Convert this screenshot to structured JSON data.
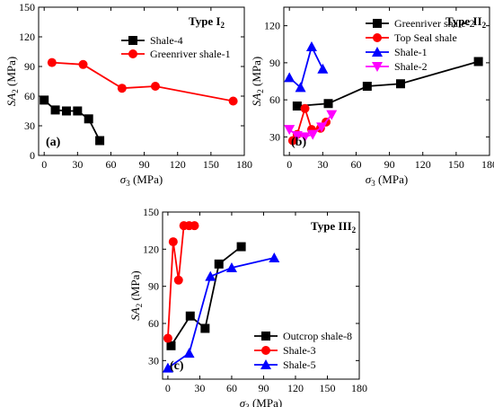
{
  "chart_data": [
    {
      "type": "line",
      "panel_label": "(a)",
      "type_label": {
        "base": "Type I",
        "sub": "2"
      },
      "xlabel": {
        "sym": "σ",
        "sub": "3",
        "unit": " (MPa)"
      },
      "ylabel": {
        "sym": "SA",
        "sub": "2",
        "unit": " (MPa)"
      },
      "xlim": [
        -5,
        180
      ],
      "ylim": [
        0,
        150
      ],
      "xticks": [
        0,
        30,
        60,
        90,
        120,
        150,
        180
      ],
      "yticks": [
        0,
        30,
        60,
        90,
        120,
        150
      ],
      "legend_position": "top-right",
      "series": [
        {
          "name": "Shale-4",
          "color": "#000000",
          "marker": "square",
          "x": [
            0,
            10,
            20,
            30,
            40,
            50
          ],
          "y": [
            56,
            46,
            45,
            45,
            37,
            15
          ]
        },
        {
          "name": "Greenriver shale-1",
          "color": "#ff0000",
          "marker": "circle",
          "x": [
            7,
            35,
            70,
            100,
            170
          ],
          "y": [
            94,
            92,
            68,
            70,
            55
          ]
        }
      ]
    },
    {
      "type": "line",
      "panel_label": "(b)",
      "type_label": {
        "base": "Type II",
        "sub": "2"
      },
      "xlabel": {
        "sym": "σ",
        "sub": "3",
        "unit": " (MPa)"
      },
      "ylabel": {
        "sym": "SA",
        "sub": "2",
        "unit": " (MPa)"
      },
      "xlim": [
        -5,
        180
      ],
      "ylim": [
        15,
        135
      ],
      "xticks": [
        0,
        30,
        60,
        90,
        120,
        150,
        180
      ],
      "yticks": [
        30,
        60,
        90,
        120
      ],
      "legend_position": "top-right",
      "series": [
        {
          "name": "Greenriver shale-2",
          "color": "#000000",
          "marker": "square",
          "x": [
            7,
            35,
            70,
            100,
            170
          ],
          "y": [
            55,
            57,
            71,
            73,
            91
          ]
        },
        {
          "name": "Top Seal shale",
          "color": "#ff0000",
          "marker": "circle",
          "x": [
            3,
            7,
            14,
            20,
            28,
            33
          ],
          "y": [
            27,
            32,
            53,
            36,
            37,
            42
          ]
        },
        {
          "name": "Shale-1",
          "color": "#0000ff",
          "marker": "triangle",
          "x": [
            0,
            10,
            20,
            30
          ],
          "y": [
            78,
            70,
            103,
            85
          ]
        },
        {
          "name": "Shale-2",
          "color": "#ff00ff",
          "marker": "triangle-down",
          "x": [
            0,
            7,
            14,
            21,
            29,
            38
          ],
          "y": [
            36,
            31,
            30,
            32,
            38,
            48
          ]
        }
      ]
    },
    {
      "type": "line",
      "panel_label": "(c)",
      "type_label": {
        "base": "Type III",
        "sub": "2"
      },
      "xlabel": {
        "sym": "σ",
        "sub": "3",
        "unit": " (MPa)"
      },
      "ylabel": {
        "sym": "SA",
        "sub": "2",
        "unit": " (MPa)"
      },
      "xlim": [
        -5,
        180
      ],
      "ylim": [
        15,
        150
      ],
      "xticks": [
        0,
        30,
        60,
        90,
        120,
        150,
        180
      ],
      "yticks": [
        30,
        60,
        90,
        120,
        150
      ],
      "legend_position": "bottom-right",
      "series": [
        {
          "name": "Outcrop shale-8",
          "color": "#000000",
          "marker": "square",
          "x": [
            3,
            21,
            35,
            48,
            69
          ],
          "y": [
            42,
            66,
            56,
            108,
            122
          ]
        },
        {
          "name": "Shale-3",
          "color": "#ff0000",
          "marker": "circle",
          "x": [
            0,
            5,
            10,
            15,
            20,
            25
          ],
          "y": [
            48,
            126,
            95,
            139,
            139,
            139
          ]
        },
        {
          "name": "Shale-5",
          "color": "#0000ff",
          "marker": "triangle",
          "x": [
            0,
            20,
            40,
            60,
            100
          ],
          "y": [
            24,
            36,
            98,
            105,
            113
          ]
        }
      ]
    }
  ]
}
